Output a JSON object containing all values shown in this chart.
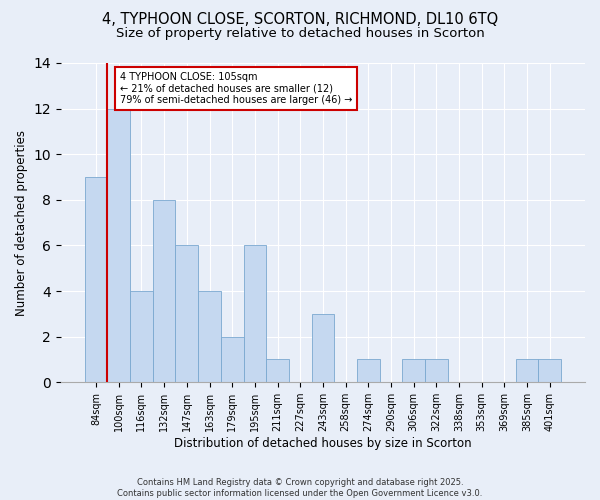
{
  "title": "4, TYPHOON CLOSE, SCORTON, RICHMOND, DL10 6TQ",
  "subtitle": "Size of property relative to detached houses in Scorton",
  "categories": [
    "84sqm",
    "100sqm",
    "116sqm",
    "132sqm",
    "147sqm",
    "163sqm",
    "179sqm",
    "195sqm",
    "211sqm",
    "227sqm",
    "243sqm",
    "258sqm",
    "274sqm",
    "290sqm",
    "306sqm",
    "322sqm",
    "338sqm",
    "353sqm",
    "369sqm",
    "385sqm",
    "401sqm"
  ],
  "values": [
    9,
    12,
    4,
    8,
    6,
    4,
    2,
    6,
    1,
    0,
    3,
    0,
    1,
    0,
    1,
    1,
    0,
    0,
    0,
    1,
    1
  ],
  "bar_color": "#c5d8f0",
  "bar_edgecolor": "#7aa8d0",
  "vline_color": "#cc0000",
  "vline_x_index": 1,
  "annotation_text": "4 TYPHOON CLOSE: 105sqm\n← 21% of detached houses are smaller (12)\n79% of semi-detached houses are larger (46) →",
  "annotation_box_edgecolor": "#cc0000",
  "annotation_box_facecolor": "white",
  "xlabel": "Distribution of detached houses by size in Scorton",
  "ylabel": "Number of detached properties",
  "footer": "Contains HM Land Registry data © Crown copyright and database right 2025.\nContains public sector information licensed under the Open Government Licence v3.0.",
  "ylim": [
    0,
    14
  ],
  "yticks": [
    0,
    2,
    4,
    6,
    8,
    10,
    12,
    14
  ],
  "background_color": "#e8eef8",
  "plot_background": "#e8eef8",
  "title_fontsize": 10.5,
  "subtitle_fontsize": 9.5,
  "axis_label_fontsize": 8.5,
  "tick_fontsize": 7,
  "annotation_fontsize": 7,
  "footer_fontsize": 6
}
